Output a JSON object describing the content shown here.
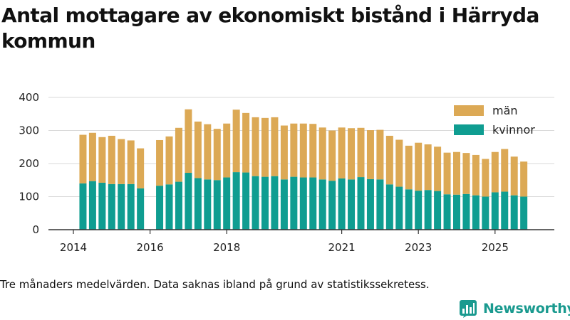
{
  "chart_data": {
    "type": "bar",
    "stacked": true,
    "title": "Antal mottagare av ekonomiskt bistånd i Härryda kommun",
    "ylim": [
      0,
      400
    ],
    "yticks": [
      0,
      100,
      200,
      300,
      400
    ],
    "xticks": [
      {
        "label": "2014",
        "index": 0
      },
      {
        "label": "2016",
        "index": 8
      },
      {
        "label": "2018",
        "index": 16
      },
      {
        "label": "2021",
        "index": 28
      },
      {
        "label": "2023",
        "index": 36
      },
      {
        "label": "2025",
        "index": 44
      }
    ],
    "n_slots": 48,
    "first_bar_slot": 1,
    "legend_position": "top-right",
    "series": [
      {
        "name": "kvinnor",
        "color": "#0f9d91",
        "values": [
          140,
          147,
          142,
          138,
          138,
          138,
          125,
          null,
          133,
          137,
          145,
          172,
          156,
          152,
          150,
          158,
          174,
          173,
          162,
          160,
          162,
          152,
          160,
          158,
          158,
          152,
          148,
          155,
          152,
          159,
          153,
          152,
          137,
          130,
          122,
          118,
          120,
          117,
          107,
          106,
          108,
          104,
          100,
          113,
          115,
          104,
          100
        ]
      },
      {
        "name": "män",
        "color": "#dca955",
        "values": [
          147,
          146,
          138,
          146,
          136,
          132,
          121,
          null,
          138,
          145,
          163,
          192,
          171,
          167,
          155,
          163,
          189,
          180,
          178,
          178,
          178,
          163,
          161,
          163,
          162,
          157,
          152,
          154,
          155,
          149,
          148,
          150,
          147,
          142,
          132,
          145,
          138,
          134,
          126,
          129,
          124,
          122,
          114,
          122,
          129,
          117,
          106
        ]
      }
    ]
  },
  "footnote": "Tre månaders medelvärden. Data saknas ibland på grund av statistikssekretess.",
  "brand": {
    "name": "Newsworthy",
    "icon": "bar-chart-logo-icon"
  }
}
